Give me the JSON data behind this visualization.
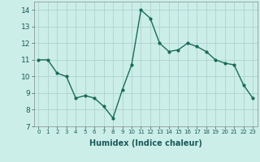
{
  "x": [
    0,
    1,
    2,
    3,
    4,
    5,
    6,
    7,
    8,
    9,
    10,
    11,
    12,
    13,
    14,
    15,
    16,
    17,
    18,
    19,
    20,
    21,
    22,
    23
  ],
  "y": [
    11.0,
    11.0,
    10.2,
    10.0,
    8.7,
    8.85,
    8.7,
    8.2,
    7.5,
    9.2,
    10.7,
    14.0,
    13.5,
    12.0,
    11.5,
    11.6,
    12.0,
    11.8,
    11.5,
    11.0,
    10.8,
    10.7,
    9.5,
    8.7
  ],
  "xlabel": "Humidex (Indice chaleur)",
  "ylabel": "",
  "ylim": [
    7,
    14.5
  ],
  "yticks": [
    7,
    8,
    9,
    10,
    11,
    12,
    13,
    14
  ],
  "line_color": "#1a6b5a",
  "marker": "o",
  "marker_size": 2,
  "line_width": 1.0,
  "bg_color": "#cceee8",
  "grid_color": "#aacccc",
  "fig_bg": "#cceee8"
}
